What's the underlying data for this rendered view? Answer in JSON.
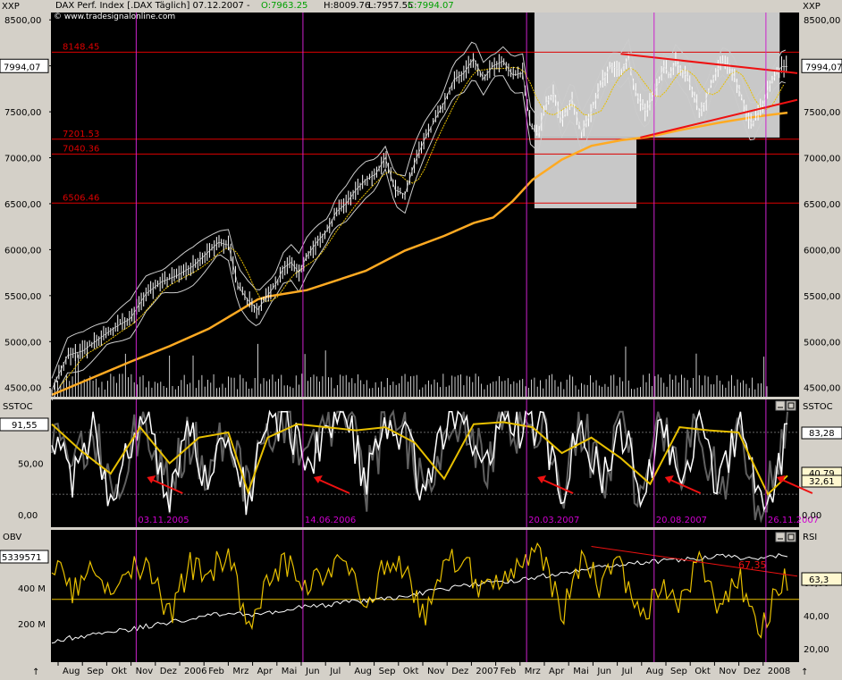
{
  "header": {
    "symbol": "XXP",
    "title": "DAX Perf. Index [.DAX  Täglich] 07.12.2007 -",
    "open": "O:7963.25",
    "high": "H:8009.76",
    "low": "L:7957.55",
    "close": "C:7994.07",
    "source": "© www.tradesignalonline.com"
  },
  "colors": {
    "panel": "#000000",
    "bg": "#d4d0c8",
    "gray_zone": "#c8c8c8",
    "level": "#dd0000",
    "trend": "#ee1111",
    "sma": "#ffaa22",
    "bands": "#000000",
    "marker": "#cc22cc",
    "marker_text": "#d000d0",
    "stoch_k": "#ffffff",
    "stoch_d": "#e8c000",
    "stoch_raw": "#606060",
    "rsi": "#e8c000",
    "obv": "#ffffff"
  },
  "chart_data": [
    {
      "id": "price",
      "type": "line",
      "title": "DAX Perf. Index [.DAX  Täglich] 07.12.2007",
      "y_axis_label": "XXP",
      "ylim": [
        4400,
        8580
      ],
      "yticks": [
        4500,
        5000,
        5500,
        6000,
        6500,
        7000,
        7500,
        8000,
        8500
      ],
      "ytick_labels": [
        "4500,00",
        "5000,00",
        "5500,00",
        "6000,00",
        "6500,00",
        "7000,00",
        "7500,00",
        "8000,00",
        "8500,00"
      ],
      "last_value_label": "7994,07",
      "levels": [
        {
          "value": 8148.45,
          "label": "8148.45"
        },
        {
          "value": 7201.53,
          "label": "7201.53"
        },
        {
          "value": 7040.36,
          "label": "7040.36"
        },
        {
          "value": 6506.46,
          "label": "6506.46"
        }
      ],
      "series": [
        {
          "name": "",
          "role": "close",
          "x": [
            0,
            8,
            16,
            24,
            32,
            40,
            48,
            56,
            64,
            72,
            80,
            85,
            90,
            95,
            100,
            105,
            110,
            114,
            118,
            122,
            126,
            130,
            135,
            140,
            145,
            150,
            155,
            160,
            165,
            170,
            175,
            180,
            185,
            190,
            195,
            200,
            205,
            210,
            215,
            220,
            225,
            230,
            235,
            240,
            244,
            248,
            252,
            256,
            260,
            265,
            270,
            275,
            280,
            285,
            290,
            294,
            297,
            300,
            303,
            306,
            309,
            312,
            315,
            318,
            321,
            324,
            327,
            330,
            333,
            336,
            339,
            342,
            345,
            348,
            351,
            354,
            357,
            360,
            363,
            366,
            369,
            372,
            375
          ],
          "y": [
            4480,
            4850,
            4900,
            5030,
            5150,
            5250,
            5520,
            5650,
            5720,
            5820,
            5980,
            6080,
            6050,
            5600,
            5450,
            5350,
            5500,
            5620,
            5800,
            5860,
            5750,
            5930,
            6080,
            6200,
            6410,
            6500,
            6650,
            6760,
            6820,
            7000,
            6650,
            6600,
            6950,
            7200,
            7400,
            7600,
            7850,
            7920,
            8080,
            7860,
            8000,
            8050,
            7900,
            7920,
            7350,
            7250,
            7600,
            7700,
            7400,
            7650,
            7280,
            7500,
            7800,
            8000,
            7950,
            8080,
            7750,
            7600,
            7500,
            7650,
            7800,
            8000,
            7900,
            8050,
            7950,
            7880,
            7700,
            7500,
            7600,
            7800,
            7950,
            8050,
            8000,
            7880,
            7700,
            7500,
            7350,
            7500,
            7600,
            7800,
            7900,
            7990,
            7994
          ]
        },
        {
          "name": "",
          "role": "sma_200",
          "x": [
            0,
            20,
            40,
            60,
            80,
            95,
            105,
            110,
            130,
            160,
            180,
            200,
            215,
            225,
            235,
            245,
            260,
            275,
            290,
            305,
            320,
            340,
            360,
            375
          ],
          "y": [
            4420,
            4600,
            4780,
            4950,
            5140,
            5330,
            5460,
            5490,
            5560,
            5770,
            5990,
            6150,
            6290,
            6350,
            6530,
            6760,
            6980,
            7130,
            7190,
            7230,
            7300,
            7380,
            7450,
            7490
          ]
        },
        {
          "name": "",
          "role": "trendline_upper",
          "x": [
            290,
            380
          ],
          "y": [
            8130,
            7920
          ]
        },
        {
          "name": "",
          "role": "trendline_lower",
          "x": [
            300,
            380
          ],
          "y": [
            7220,
            7630
          ]
        }
      ],
      "gray_zone_x": [
        246,
        371
      ]
    },
    {
      "id": "stochastic",
      "type": "line",
      "title": "SSTOC",
      "ylim": [
        -12,
        112
      ],
      "yticks": [
        0,
        50
      ],
      "ytick_labels": [
        "0,00",
        "50,00"
      ],
      "last_value_labels": [
        "91,55",
        "83,28",
        "40,79",
        "32,61"
      ],
      "reference_lines": [
        80,
        20
      ],
      "series": [
        {
          "name": "",
          "role": "slow_k",
          "x": [
            0,
            10,
            20,
            30,
            40,
            50,
            60,
            70,
            80,
            90,
            100,
            110,
            120,
            130,
            140,
            150,
            160,
            170,
            180,
            190,
            200,
            210,
            220,
            230,
            240,
            250,
            260,
            270,
            280,
            290,
            300,
            310,
            320,
            330,
            340,
            350,
            360,
            370,
            375
          ],
          "y": [
            90,
            30,
            85,
            20,
            70,
            90,
            18,
            80,
            30,
            95,
            12,
            90,
            95,
            40,
            85,
            95,
            30,
            90,
            75,
            20,
            85,
            95,
            45,
            90,
            80,
            90,
            20,
            90,
            35,
            90,
            15,
            85,
            35,
            90,
            20,
            90,
            10,
            40,
            90
          ]
        },
        {
          "name": "",
          "role": "slow_d",
          "x": [
            0,
            15,
            30,
            45,
            60,
            75,
            90,
            100,
            110,
            125,
            140,
            155,
            170,
            185,
            200,
            215,
            230,
            245,
            260,
            275,
            290,
            305,
            320,
            335,
            350,
            365,
            375
          ],
          "y": [
            88,
            62,
            40,
            85,
            50,
            75,
            80,
            22,
            75,
            88,
            85,
            82,
            85,
            70,
            35,
            88,
            90,
            85,
            60,
            75,
            55,
            30,
            85,
            82,
            80,
            20,
            38
          ]
        }
      ],
      "annotations": [
        {
          "x": 43,
          "label": "03.11.2005"
        },
        {
          "x": 128,
          "label": "14.06.2006"
        },
        {
          "x": 242,
          "label": "20.03.2007"
        },
        {
          "x": 307,
          "label": "20.08.2007"
        },
        {
          "x": 364,
          "label": "26.11.2007"
        }
      ]
    },
    {
      "id": "obv_rsi",
      "type": "line",
      "title": "OBV / RSI",
      "left_axis_title": "OBV",
      "right_axis_title": "RSI",
      "left_yticks": [
        200,
        400
      ],
      "left_ytick_labels": [
        "200 M",
        "400 M"
      ],
      "left_last_value_label": "5339571",
      "rsi_ylim": [
        12,
        92
      ],
      "rsi_yticks": [
        20,
        40,
        60
      ],
      "rsi_ytick_labels": [
        "20,00",
        "40,00",
        "60,00"
      ],
      "rsi_last_value_label": "63,3",
      "trendline_label": "67,35",
      "series": [
        {
          "name": "",
          "role": "rsi",
          "x": [
            0,
            10,
            20,
            30,
            40,
            50,
            60,
            70,
            80,
            90,
            100,
            110,
            120,
            130,
            140,
            150,
            160,
            170,
            180,
            190,
            200,
            210,
            220,
            230,
            240,
            250,
            260,
            270,
            280,
            290,
            300,
            310,
            320,
            330,
            340,
            350,
            360,
            370,
            375
          ],
          "y": [
            75,
            55,
            70,
            48,
            72,
            65,
            40,
            70,
            65,
            78,
            30,
            60,
            72,
            55,
            70,
            68,
            45,
            72,
            68,
            40,
            72,
            75,
            50,
            68,
            70,
            78,
            40,
            72,
            58,
            70,
            35,
            62,
            50,
            70,
            40,
            65,
            30,
            55,
            63
          ]
        },
        {
          "name": "",
          "role": "obv",
          "x": [
            0,
            30,
            60,
            90,
            105,
            120,
            150,
            180,
            200,
            220,
            240,
            260,
            280,
            300,
            320,
            340,
            360,
            375
          ],
          "y": [
            25,
            30,
            36,
            42,
            40,
            44,
            48,
            52,
            56,
            60,
            62,
            66,
            70,
            72,
            74,
            76,
            75,
            77
          ]
        }
      ]
    }
  ],
  "x_axis": {
    "labels": [
      "Aug",
      "Sep",
      "Okt",
      "Nov",
      "Dez",
      "2006",
      "Feb",
      "Mrz",
      "Apr",
      "Mai",
      "Jun",
      "Jul",
      "Aug",
      "Sep",
      "Okt",
      "Nov",
      "Dez",
      "2007",
      "Feb",
      "Mrz",
      "Apr",
      "Mai",
      "Jun",
      "Jul",
      "Aug",
      "Sep",
      "Okt",
      "Nov",
      "Dez",
      "2008"
    ]
  }
}
